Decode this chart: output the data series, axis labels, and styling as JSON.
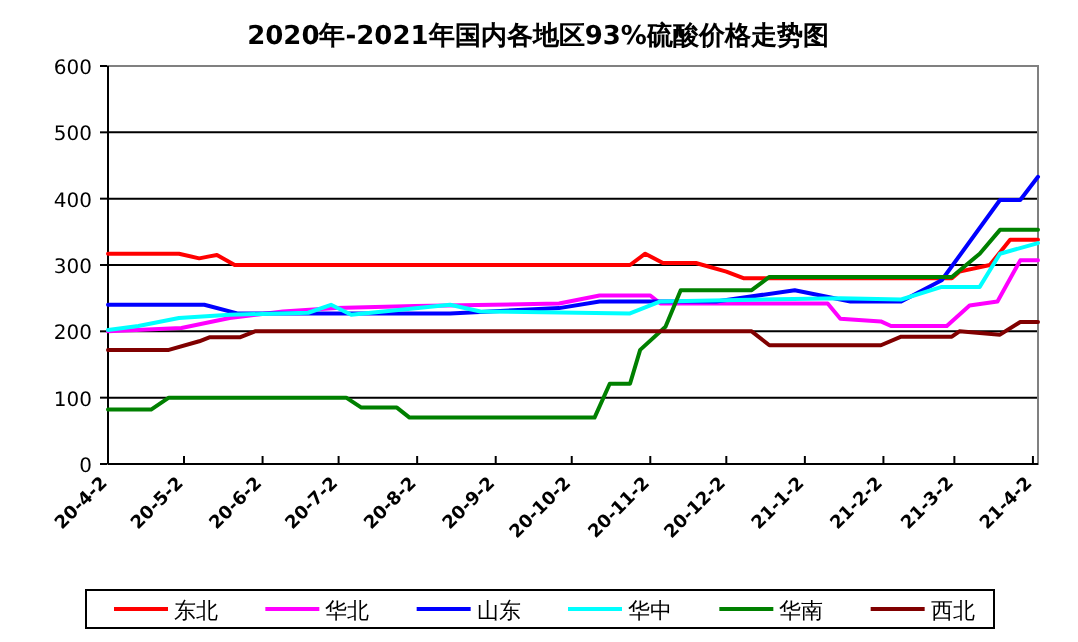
{
  "chart_data": {
    "type": "line",
    "title": "2020年-2021年国内各地区93%硫酸价格走势图",
    "xlim": [
      "2020-04-02",
      "2021-04-04"
    ],
    "xticks": [
      {
        "value": "2020-04-02",
        "label": "20-4-2"
      },
      {
        "value": "2020-05-02",
        "label": "20-5-2"
      },
      {
        "value": "2020-06-02",
        "label": "20-6-2"
      },
      {
        "value": "2020-07-02",
        "label": "20-7-2"
      },
      {
        "value": "2020-08-02",
        "label": "20-8-2"
      },
      {
        "value": "2020-09-02",
        "label": "20-9-2"
      },
      {
        "value": "2020-10-02",
        "label": "20-10-2"
      },
      {
        "value": "2020-11-02",
        "label": "20-11-2"
      },
      {
        "value": "2020-12-02",
        "label": "20-12-2"
      },
      {
        "value": "2021-01-02",
        "label": "21-1-2"
      },
      {
        "value": "2021-02-02",
        "label": "21-2-2"
      },
      {
        "value": "2021-03-02",
        "label": "21-3-2"
      },
      {
        "value": "2021-04-02",
        "label": "21-4-2"
      }
    ],
    "ylim": [
      0,
      600
    ],
    "yticks": [
      0,
      100,
      200,
      300,
      400,
      500,
      600
    ],
    "grid": "y",
    "legend": "bottom",
    "series": [
      {
        "name": "东北",
        "color": "#ff0000",
        "x": [
          "2020-04-02",
          "2020-04-30",
          "2020-05-08",
          "2020-05-12",
          "2020-05-15",
          "2020-05-22",
          "2020-10-25",
          "2020-10-31",
          "2020-11-07",
          "2020-11-20",
          "2020-12-02",
          "2020-12-09",
          "2021-03-01",
          "2021-03-04",
          "2021-03-16",
          "2021-03-24",
          "2021-04-04"
        ],
        "values": [
          317,
          317,
          310,
          313,
          315,
          300,
          300,
          317,
          303,
          303,
          290,
          280,
          280,
          290,
          300,
          338,
          338
        ]
      },
      {
        "name": "华北",
        "color": "#ff00ff",
        "x": [
          "2020-04-02",
          "2020-05-01",
          "2020-05-20",
          "2020-06-10",
          "2020-07-01",
          "2020-08-01",
          "2020-09-01",
          "2020-09-27",
          "2020-10-13",
          "2020-11-02",
          "2020-11-06",
          "2021-01-11",
          "2021-01-16",
          "2021-02-01",
          "2021-02-05",
          "2021-02-27",
          "2021-03-08",
          "2021-03-19",
          "2021-03-28",
          "2021-04-04"
        ],
        "values": [
          200,
          205,
          220,
          230,
          235,
          238,
          240,
          242,
          254,
          254,
          242,
          242,
          219,
          215,
          208,
          208,
          239,
          245,
          307,
          307
        ]
      },
      {
        "name": "山东",
        "color": "#0000ff",
        "x": [
          "2020-04-02",
          "2020-05-10",
          "2020-05-23",
          "2020-08-15",
          "2020-09-27",
          "2020-10-13",
          "2020-11-28",
          "2020-12-29",
          "2021-01-20",
          "2021-02-09",
          "2021-02-25",
          "2021-03-20",
          "2021-03-28",
          "2021-04-04"
        ],
        "values": [
          240,
          240,
          227,
          227,
          235,
          245,
          245,
          262,
          245,
          245,
          277,
          398,
          398,
          433
        ]
      },
      {
        "name": "华中",
        "color": "#00ffff",
        "x": [
          "2020-04-02",
          "2020-04-14",
          "2020-04-30",
          "2020-05-20",
          "2020-06-20",
          "2020-06-29",
          "2020-07-07",
          "2020-08-15",
          "2020-08-27",
          "2020-10-25",
          "2020-11-06",
          "2021-01-16",
          "2021-02-09",
          "2021-02-25",
          "2021-03-12",
          "2021-03-20",
          "2021-04-04"
        ],
        "values": [
          202,
          208,
          220,
          225,
          228,
          240,
          225,
          240,
          230,
          227,
          245,
          250,
          248,
          267,
          267,
          317,
          333
        ]
      },
      {
        "name": "华南",
        "color": "#008000",
        "x": [
          "2020-04-02",
          "2020-04-19",
          "2020-04-26",
          "2020-07-05",
          "2020-07-11",
          "2020-07-25",
          "2020-07-30",
          "2020-10-11",
          "2020-10-17",
          "2020-10-25",
          "2020-10-29",
          "2020-11-08",
          "2020-11-14",
          "2020-12-12",
          "2020-12-19",
          "2021-03-01",
          "2021-03-12",
          "2021-03-20",
          "2021-04-04"
        ],
        "values": [
          82,
          82,
          100,
          100,
          85,
          85,
          70,
          70,
          121,
          121,
          172,
          207,
          262,
          262,
          282,
          282,
          317,
          353,
          353
        ]
      },
      {
        "name": "西北",
        "color": "#800000",
        "x": [
          "2020-04-02",
          "2020-04-26",
          "2020-05-08",
          "2020-05-12",
          "2020-05-24",
          "2020-05-30",
          "2020-12-12",
          "2020-12-19",
          "2021-02-01",
          "2021-02-09",
          "2021-03-01",
          "2021-03-04",
          "2021-03-20",
          "2021-03-28",
          "2021-04-04"
        ],
        "values": [
          172,
          172,
          185,
          191,
          191,
          200,
          200,
          179,
          179,
          192,
          192,
          200,
          195,
          214,
          214
        ]
      }
    ]
  }
}
